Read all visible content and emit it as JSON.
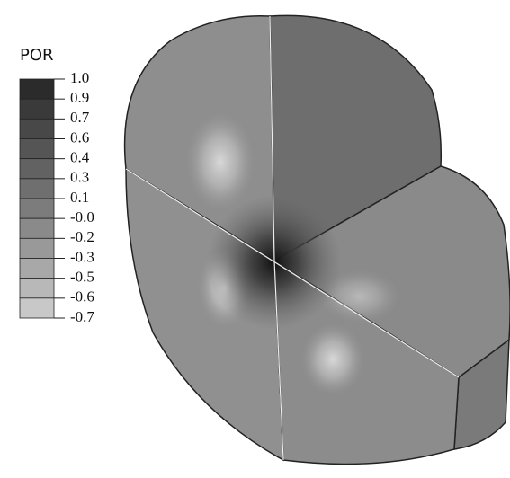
{
  "legend": {
    "title": "POR",
    "labels": [
      "1.0",
      "0.9",
      "0.7",
      "0.6",
      "0.4",
      "0.3",
      "0.1",
      "-0.0",
      "-0.2",
      "-0.3",
      "-0.5",
      "-0.6",
      "-0.7"
    ],
    "colors": [
      "#2b2b2b",
      "#3a3a3a",
      "#484848",
      "#555555",
      "#626262",
      "#6f6f6f",
      "#7c7c7c",
      "#8a8a8a",
      "#999999",
      "#a8a8a8",
      "#b8b8b8",
      "#c8c8c8",
      "#dadada"
    ]
  }
}
